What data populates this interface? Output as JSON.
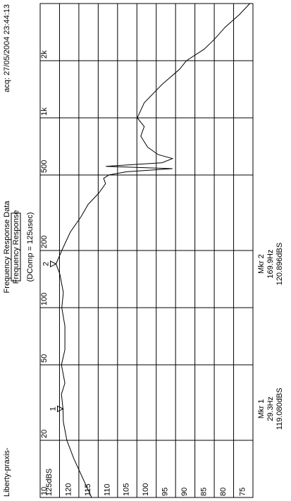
{
  "chart_data": {
    "type": "line",
    "title": "Frequency Response Data",
    "subtitle": "Frequency Response",
    "note": "(DComp = 125usec)",
    "source": "Liberty-praxis-",
    "timestamp": "acq: 27/05/2004 23:44:13",
    "x": [
      10,
      16,
      20,
      25,
      29.3,
      35,
      40,
      50,
      60,
      80,
      100,
      120,
      150,
      170,
      200,
      250,
      300,
      350,
      400,
      450,
      480,
      500,
      520,
      540,
      555,
      580,
      610,
      640,
      700,
      800,
      900,
      1000,
      1200,
      1500,
      1800,
      2000,
      2300,
      2600,
      3000,
      3500,
      4000
    ],
    "values": [
      111.7,
      116.3,
      118.1,
      119,
      119.1,
      119.5,
      118.6,
      119.5,
      118.6,
      118.6,
      119.4,
      119,
      119.9,
      120.9,
      119.4,
      117.2,
      114.5,
      112.6,
      109.9,
      108.1,
      108.6,
      107.2,
      102.6,
      90.8,
      108,
      93.5,
      90.8,
      94.5,
      97.2,
      99,
      98.1,
      99.9,
      98.1,
      93.5,
      89,
      87.2,
      82.6,
      79.9,
      77.2,
      73.5,
      70.8
    ],
    "color": "#000000",
    "xlim": [
      10,
      4000
    ],
    "xscale": "log",
    "xticks": [
      10,
      20,
      50,
      100,
      200,
      500,
      {
        "value": 1000,
        "label": "1k"
      },
      {
        "value": 2000,
        "label": "2k"
      }
    ],
    "ylim": [
      125,
      70
    ],
    "yticks": [
      {
        "value": 125,
        "label": "125dBS"
      },
      120,
      115,
      110,
      105,
      100,
      95,
      90,
      85,
      80,
      75
    ],
    "grid": true,
    "markers": [
      {
        "label": "1",
        "x": 29.3,
        "value": 119.08,
        "name": "Mkr 1",
        "x_label": "29.3Hz",
        "value_label": "119.080dBS"
      },
      {
        "label": "2",
        "x": 169.9,
        "value": 120.896,
        "name": "Mkr 2",
        "x_label": "169.9Hz",
        "value_label": "120.896dBS"
      }
    ]
  }
}
